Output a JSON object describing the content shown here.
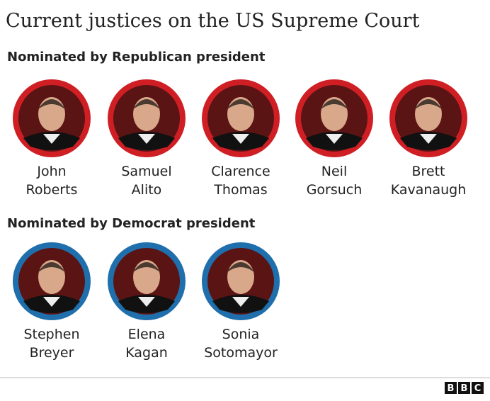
{
  "title": "Current justices on the US Supreme Court",
  "groups": [
    {
      "heading": "Nominated by Republican president",
      "ring_color": "#cf1f25",
      "justices": [
        {
          "first": "John",
          "last": "Roberts"
        },
        {
          "first": "Samuel",
          "last": "Alito"
        },
        {
          "first": "Clarence",
          "last": "Thomas"
        },
        {
          "first": "Neil",
          "last": "Gorsuch"
        },
        {
          "first": "Brett",
          "last": "Kavanaugh"
        }
      ]
    },
    {
      "heading": "Nominated by Democrat president",
      "ring_color": "#1f6fad",
      "justices": [
        {
          "first": "Stephen",
          "last": "Breyer"
        },
        {
          "first": "Elena",
          "last": "Kagan"
        },
        {
          "first": "Sonia",
          "last": "Sotomayor"
        }
      ]
    }
  ],
  "footer": {
    "logo": [
      "B",
      "B",
      "C"
    ]
  }
}
